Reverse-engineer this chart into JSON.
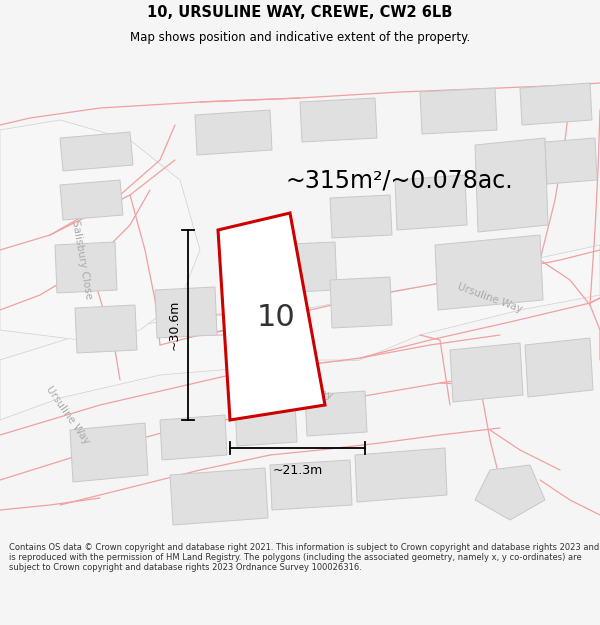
{
  "title": "10, URSULINE WAY, CREWE, CW2 6LB",
  "subtitle": "Map shows position and indicative extent of the property.",
  "area_text": "~315m²/~0.078ac.",
  "property_number": "10",
  "width_label": "~21.3m",
  "height_label": "~30.6m",
  "footer": "Contains OS data © Crown copyright and database right 2021. This information is subject to Crown copyright and database rights 2023 and is reproduced with the permission of HM Land Registry. The polygons (including the associated geometry, namely x, y co-ordinates) are subject to Crown copyright and database rights 2023 Ordnance Survey 100026316.",
  "bg_color": "#f5f5f5",
  "map_bg": "#ffffff",
  "building_fill": "#e0e0e0",
  "building_edge": "#c8c8c8",
  "road_line": "#f0a0a0",
  "road_outline": "#d0d0d0",
  "property_stroke": "#cc0000",
  "property_fill": "#ffffff",
  "dim_color": "#000000",
  "label_color": "#aaaaaa",
  "salisbury_color": "#b0b0b0",
  "title_color": "#000000",
  "footer_color": "#333333"
}
